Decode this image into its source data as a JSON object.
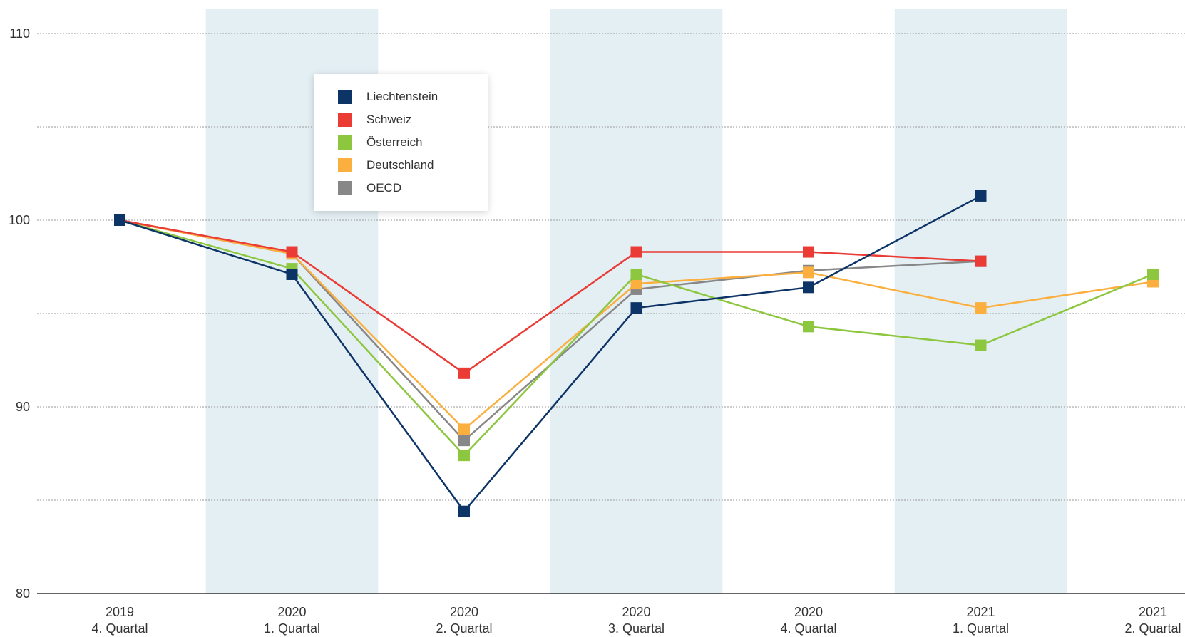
{
  "chart_data": {
    "type": "line",
    "categories": [
      [
        "2019",
        "4. Quartal"
      ],
      [
        "2020",
        "1. Quartal"
      ],
      [
        "2020",
        "2. Quartal"
      ],
      [
        "2020",
        "3. Quartal"
      ],
      [
        "2020",
        "4. Quartal"
      ],
      [
        "2021",
        "1. Quartal"
      ],
      [
        "2021",
        "2. Quartal"
      ]
    ],
    "ylim": [
      80,
      110
    ],
    "yticks": [
      80,
      90,
      100,
      110
    ],
    "grid": true,
    "legend_position": "top-left",
    "series": [
      {
        "name": "Liechtenstein",
        "color": "#0d3466",
        "values": [
          100,
          97.1,
          84.4,
          95.3,
          96.4,
          101.3,
          null
        ]
      },
      {
        "name": "Schweiz",
        "color": "#ea3b35",
        "values": [
          100,
          98.3,
          91.8,
          98.3,
          98.3,
          97.8,
          null
        ]
      },
      {
        "name": "Österreich",
        "color": "#8dc63f",
        "values": [
          100,
          97.4,
          87.4,
          97.1,
          94.3,
          93.3,
          97.1
        ]
      },
      {
        "name": "Deutschland",
        "color": "#fbaf3f",
        "values": [
          100,
          98.2,
          88.8,
          96.6,
          97.2,
          95.3,
          96.7
        ]
      },
      {
        "name": "OECD",
        "color": "#878787",
        "values": [
          100,
          98.2,
          88.2,
          96.3,
          97.3,
          97.8,
          null
        ]
      }
    ]
  }
}
